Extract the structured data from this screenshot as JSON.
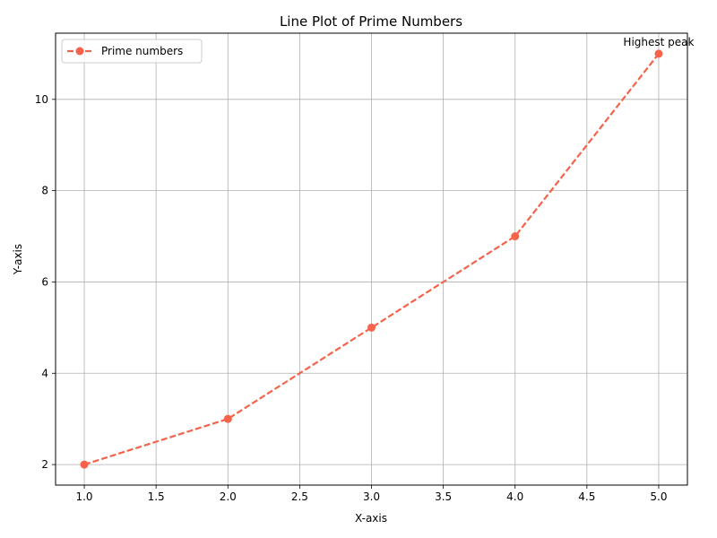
{
  "chart_data": {
    "type": "line",
    "title": "Line Plot of Prime Numbers",
    "xlabel": "X-axis",
    "ylabel": "Y-axis",
    "xlim": [
      0.8,
      5.2
    ],
    "ylim": [
      1.55,
      11.45
    ],
    "xticks": [
      1.0,
      1.5,
      2.0,
      2.5,
      3.0,
      3.5,
      4.0,
      4.5,
      5.0
    ],
    "xtick_labels": [
      "1.0",
      "1.5",
      "2.0",
      "2.5",
      "3.0",
      "3.5",
      "4.0",
      "4.5",
      "5.0"
    ],
    "yticks": [
      2,
      4,
      6,
      8,
      10
    ],
    "ytick_labels": [
      "2",
      "4",
      "6",
      "8",
      "10"
    ],
    "grid": true,
    "legend_position": "upper-left",
    "series": [
      {
        "name": "Prime numbers",
        "x": [
          1,
          2,
          3,
          4,
          5
        ],
        "y": [
          2,
          3,
          5,
          7,
          11
        ],
        "color": "#f4634a",
        "line_style": "dashed",
        "marker": "circle"
      }
    ],
    "annotations": [
      {
        "text": "Highest peak",
        "x": 5,
        "y": 11
      }
    ]
  }
}
